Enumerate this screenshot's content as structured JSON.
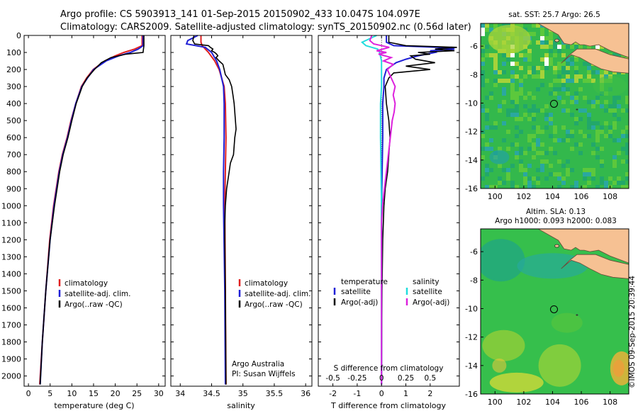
{
  "header": {
    "line1": "Argo profile: CS 5903913_141 01-Sep-2015 20150902_433 10.047S 104.097E",
    "line2": "Climatology: CARS2009. Satellite-adjusted climatology: synTS_20150902.nc (0.56d later)"
  },
  "colors": {
    "climatology": "#e02020",
    "satellite": "#1f1fd6",
    "argo": "#000000",
    "cyan": "#22dddd",
    "magenta": "#dd22dd",
    "land": "#f6c193",
    "coast": "#6a4a3a"
  },
  "chart_data": [
    {
      "type": "line",
      "id": "temperature",
      "xlabel": "temperature (deg C)",
      "ylim": [
        2060,
        0
      ],
      "xlim": [
        -1,
        31.5
      ],
      "xticks": [
        0,
        5,
        10,
        15,
        20,
        25,
        30
      ],
      "yticks": [
        0,
        100,
        200,
        300,
        400,
        500,
        600,
        700,
        800,
        900,
        1000,
        1100,
        1200,
        1300,
        1400,
        1500,
        1600,
        1700,
        1800,
        1900,
        2000
      ],
      "legend": [
        "climatology",
        "satellite-adj. clim.",
        "Argo(..raw -QC)"
      ],
      "series": [
        {
          "name": "climatology",
          "color_key": "climatology",
          "depth": [
            0,
            60,
            80,
            100,
            120,
            150,
            200,
            250,
            300,
            400,
            500,
            600,
            700,
            800,
            1000,
            1200,
            1500,
            1800,
            2050
          ],
          "values": [
            26.2,
            26.2,
            24.5,
            22.0,
            20.0,
            17.6,
            14.9,
            13.4,
            12.2,
            10.9,
            9.8,
            8.9,
            7.8,
            7.0,
            5.8,
            4.9,
            4.0,
            3.2,
            2.6
          ]
        },
        {
          "name": "satellite-adj. clim.",
          "color_key": "satellite",
          "depth": [
            0,
            60,
            80,
            100,
            120,
            150,
            200,
            250,
            300,
            400,
            500,
            600,
            700,
            800,
            1000,
            1200,
            1500,
            1800,
            2050
          ],
          "values": [
            26.4,
            26.4,
            25.3,
            23.5,
            20.8,
            17.9,
            15.0,
            13.6,
            12.3,
            10.9,
            9.9,
            9.0,
            7.9,
            7.1,
            5.9,
            5.0,
            4.0,
            3.2,
            2.7
          ]
        },
        {
          "name": "Argo(..raw -QC)",
          "color_key": "argo",
          "depth": [
            0,
            60,
            80,
            100,
            110,
            130,
            160,
            200,
            250,
            300,
            400,
            500,
            600,
            700,
            800,
            1000,
            1200,
            1500,
            1800,
            2050
          ],
          "values": [
            26.6,
            26.6,
            26.5,
            26.4,
            22.5,
            19.0,
            16.8,
            15.2,
            13.5,
            12.4,
            11.0,
            10.0,
            9.1,
            8.0,
            7.2,
            6.0,
            5.0,
            4.0,
            3.2,
            2.7
          ]
        }
      ]
    },
    {
      "type": "line",
      "id": "salinity",
      "xlabel": "salinity",
      "ylim": [
        2060,
        0
      ],
      "xlim": [
        33.85,
        36.1
      ],
      "xticks": [
        34,
        34.5,
        35,
        35.5,
        36
      ],
      "legend": [
        "climatology",
        "satellite-adj. clim.",
        "Argo(..raw -QC)"
      ],
      "credit": [
        "Argo Australia",
        "PI: Susan Wijffels"
      ],
      "series": [
        {
          "name": "climatology",
          "color_key": "climatology",
          "depth": [
            0,
            40,
            60,
            80,
            100,
            150,
            200,
            300,
            400,
            600,
            800,
            1000,
            1500,
            2050
          ],
          "values": [
            34.33,
            34.33,
            34.35,
            34.4,
            34.45,
            34.55,
            34.62,
            34.7,
            34.72,
            34.73,
            34.72,
            34.71,
            34.72,
            34.73
          ]
        },
        {
          "name": "satellite-adj. clim.",
          "color_key": "satellite",
          "depth": [
            0,
            30,
            50,
            70,
            100,
            150,
            200,
            300,
            400,
            600,
            800,
            1000,
            1500,
            2050
          ],
          "values": [
            34.28,
            34.12,
            34.1,
            34.4,
            34.5,
            34.58,
            34.63,
            34.69,
            34.7,
            34.7,
            34.69,
            34.69,
            34.71,
            34.72
          ]
        },
        {
          "name": "Argo(..raw -QC)",
          "color_key": "argo",
          "depth": [
            0,
            30,
            50,
            60,
            70,
            80,
            90,
            100,
            110,
            120,
            130,
            150,
            170,
            200,
            230,
            260,
            300,
            350,
            400,
            450,
            500,
            550,
            600,
            650,
            700,
            750,
            800,
            850,
            900,
            950,
            1000,
            1100,
            1200,
            1500,
            2050
          ],
          "values": [
            34.22,
            34.2,
            34.23,
            34.45,
            34.48,
            34.52,
            34.5,
            34.55,
            34.58,
            34.6,
            34.57,
            34.62,
            34.68,
            34.7,
            34.72,
            34.78,
            34.82,
            34.84,
            34.86,
            34.87,
            34.88,
            34.89,
            34.87,
            34.86,
            34.85,
            34.8,
            34.78,
            34.76,
            34.74,
            34.73,
            34.72,
            34.71,
            34.71,
            34.72,
            34.73
          ]
        }
      ]
    },
    {
      "type": "line",
      "id": "difference",
      "xlabel": "T difference from climatology",
      "xlabel_top": "S difference from climatology",
      "ylim": [
        2060,
        0
      ],
      "xlim": [
        -2.6,
        3.2
      ],
      "xticks": [
        -2,
        -1,
        0,
        1,
        2
      ],
      "s_ticks": [
        -0.5,
        -0.25,
        0,
        0.25,
        0.5
      ],
      "legend_titles": [
        "temperature",
        "salinity"
      ],
      "legend": [
        "satellite",
        "Argo(-adj)",
        "satellite",
        "Argo(-adj)"
      ],
      "series": [
        {
          "name": "T satellite",
          "color_key": "satellite",
          "depth": [
            0,
            40,
            60,
            70,
            80,
            90,
            100,
            120,
            140,
            160,
            180,
            200,
            250,
            300,
            400,
            600,
            1000,
            1500,
            2050
          ],
          "values": [
            0.2,
            0.2,
            0.5,
            2.3,
            3.0,
            2.0,
            2.2,
            1.5,
            1.0,
            0.6,
            0.4,
            0.2,
            0.1,
            0.1,
            0.05,
            0.05,
            0.0,
            0.0,
            0.0
          ]
        },
        {
          "name": "T Argo(-adj)",
          "color_key": "argo",
          "depth": [
            0,
            40,
            60,
            70,
            80,
            90,
            100,
            110,
            120,
            140,
            160,
            180,
            200,
            220,
            250,
            300,
            400,
            500,
            600,
            700,
            800,
            900,
            1000,
            1200,
            1500,
            2050
          ],
          "values": [
            0.3,
            0.3,
            1.0,
            3.1,
            2.2,
            3.0,
            1.5,
            2.0,
            1.2,
            1.4,
            2.2,
            1.0,
            2.0,
            0.5,
            0.3,
            0.15,
            0.2,
            0.3,
            0.35,
            0.3,
            0.25,
            0.15,
            0.1,
            0.05,
            0.02,
            0.0
          ]
        },
        {
          "name": "S satellite",
          "color_key": "cyan",
          "depth": [
            0,
            40,
            60,
            80,
            100,
            150,
            200,
            300,
            400,
            600,
            1000,
            1500,
            2050
          ],
          "values": [
            -0.05,
            -0.2,
            -0.16,
            -0.04,
            -0.02,
            0.0,
            0.0,
            0.0,
            -0.01,
            -0.01,
            0.0,
            0.0,
            0.0
          ]
        },
        {
          "name": "S Argo(-adj)",
          "color_key": "magenta",
          "depth": [
            0,
            30,
            50,
            70,
            90,
            100,
            110,
            130,
            150,
            170,
            200,
            250,
            300,
            350,
            400,
            450,
            500,
            600,
            700,
            800,
            900,
            1000,
            1100,
            1200,
            1500,
            2050
          ],
          "values": [
            -0.1,
            -0.12,
            -0.08,
            0.08,
            -0.05,
            0.05,
            -0.03,
            0.1,
            0.02,
            0.12,
            0.06,
            0.1,
            0.14,
            0.12,
            0.14,
            0.13,
            0.11,
            0.09,
            0.07,
            0.05,
            0.03,
            0.01,
            0.0,
            0.0,
            0.0,
            0.0
          ]
        }
      ]
    },
    {
      "type": "heatmap",
      "id": "sst_map",
      "title": "sat. SST: 25.7 Argo: 26.5",
      "xticks": [
        100,
        102,
        104,
        106,
        108
      ],
      "yticks": [
        -6,
        -8,
        -10,
        -12,
        -14,
        -16
      ],
      "xlim": [
        99.0,
        109.3
      ],
      "ylim": [
        -16,
        -4.4
      ],
      "marker": {
        "lon": 104.1,
        "lat": -10.05
      }
    },
    {
      "type": "heatmap",
      "id": "sla_map",
      "title": "Altim. SLA: 0.13",
      "subtitle": "Argo h1000: 0.093 h2000: 0.083",
      "xticks": [
        100,
        102,
        104,
        106,
        108
      ],
      "yticks": [
        -6,
        -8,
        -10,
        -12,
        -14,
        -16
      ],
      "xlim": [
        99.0,
        109.3
      ],
      "ylim": [
        -16,
        -4.4
      ],
      "marker": {
        "lon": 104.1,
        "lat": -10.05
      }
    }
  ],
  "footer": {
    "watermark": "©IMOS 09-Sep-2015 20:39:44"
  }
}
